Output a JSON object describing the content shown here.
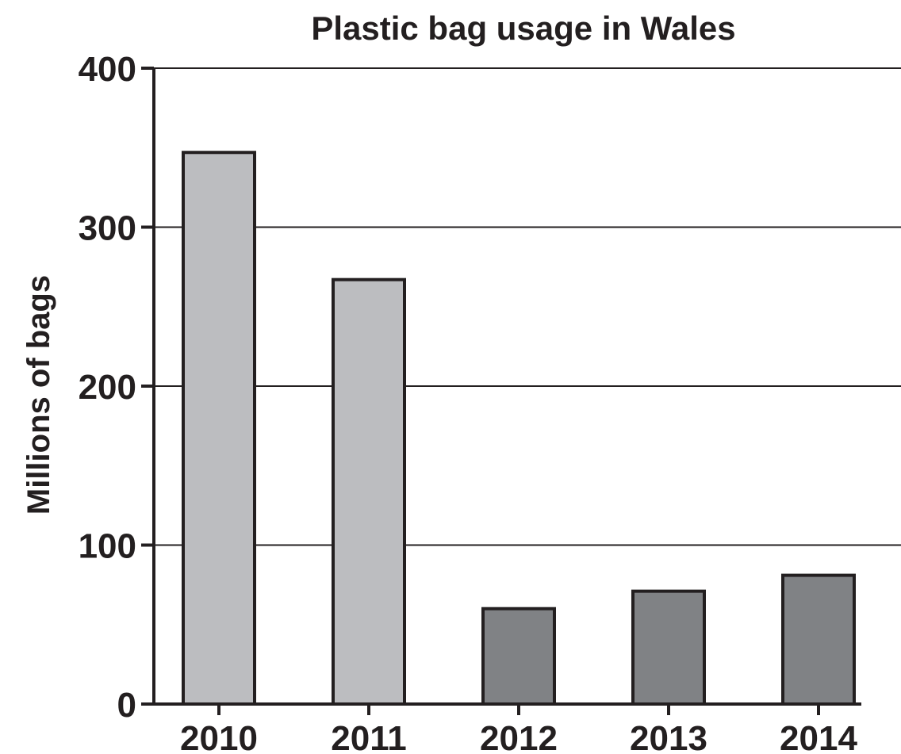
{
  "chart_data": {
    "type": "bar",
    "title": "Plastic bag usage in Wales",
    "xlabel": "",
    "ylabel": "Millions of bags",
    "categories": [
      "2010",
      "2011",
      "2012",
      "2013",
      "2014"
    ],
    "values": [
      347,
      267,
      60,
      71,
      81
    ],
    "ylim": [
      0,
      400
    ],
    "yticks": [
      0,
      100,
      200,
      300,
      400
    ],
    "ytick_labels": [
      "0",
      "100",
      "200",
      "300",
      "400"
    ],
    "grid": true,
    "legend": "none",
    "bar_colors": [
      "#bcbdc0",
      "#bcbdc0",
      "#808285",
      "#808285",
      "#808285"
    ],
    "edge_color": "#231f20",
    "text_color": "#231f20"
  }
}
